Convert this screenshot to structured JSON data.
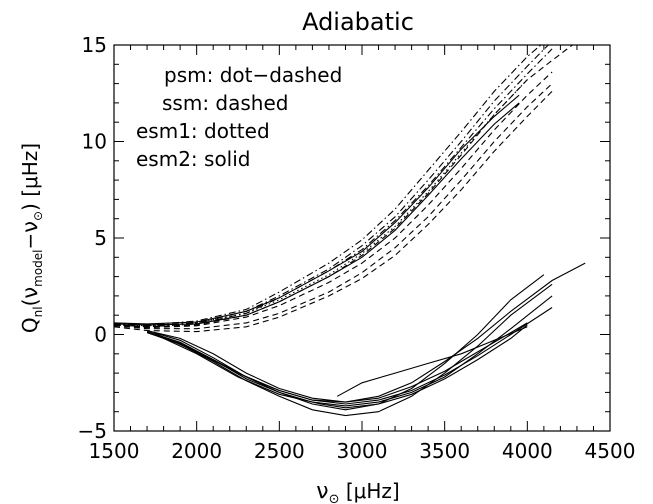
{
  "chart_data": {
    "type": "line",
    "title": "Adiabatic",
    "xlabel_parts": [
      "ν",
      "⊙",
      " [",
      "μ",
      "Hz]"
    ],
    "ylabel_parts": [
      "Q",
      "nl",
      "(",
      "ν",
      "model",
      "−",
      "ν",
      "⊙",
      ")  [",
      "μ",
      "Hz]"
    ],
    "xlim": [
      1500,
      4500
    ],
    "ylim": [
      -5,
      15
    ],
    "xticks": [
      1500,
      2000,
      2500,
      3000,
      3500,
      4000,
      4500
    ],
    "yticks": [
      -5,
      0,
      5,
      10,
      15
    ],
    "legend": [
      {
        "text": "psm: dot−dashed",
        "style": "dashdot"
      },
      {
        "text": "ssm: dashed",
        "style": "dashed"
      },
      {
        "text": "esm1: dotted",
        "style": "dotted"
      },
      {
        "text": "esm2: solid",
        "style": "solid"
      }
    ],
    "series": [
      {
        "style": "dashdot",
        "x": [
          1500,
          1700,
          2000,
          2300,
          2500,
          2800,
          3000,
          3200,
          3400,
          3600,
          3800,
          4000,
          4150
        ],
        "y": [
          0.6,
          0.5,
          0.7,
          1.3,
          2.2,
          3.7,
          4.9,
          6.5,
          8.5,
          10.5,
          12.6,
          14.4,
          15.5
        ]
      },
      {
        "style": "dashdot",
        "x": [
          1500,
          1700,
          2000,
          2300,
          2500,
          2800,
          3000,
          3200,
          3400,
          3600,
          3800,
          4000,
          4150
        ],
        "y": [
          0.55,
          0.45,
          0.6,
          1.2,
          2.0,
          3.4,
          4.6,
          6.1,
          8.0,
          10.0,
          12.1,
          13.9,
          15.2
        ]
      },
      {
        "style": "dashdot",
        "x": [
          1500,
          1700,
          2000,
          2300,
          2500,
          2800,
          3000,
          3200,
          3400,
          3600,
          3800,
          4000,
          4150
        ],
        "y": [
          0.5,
          0.4,
          0.55,
          1.1,
          1.9,
          3.3,
          4.4,
          5.9,
          7.7,
          9.7,
          11.7,
          13.5,
          14.8
        ]
      },
      {
        "style": "dashed",
        "x": [
          1500,
          1700,
          2000,
          2300,
          2500,
          2800,
          3000,
          3200,
          3400,
          3600,
          3800,
          4000,
          4150,
          4350
        ],
        "y": [
          0.5,
          0.4,
          0.5,
          1.0,
          1.7,
          3.0,
          4.1,
          5.5,
          7.3,
          9.3,
          11.4,
          13.2,
          14.2,
          15.5
        ]
      },
      {
        "style": "dashed",
        "x": [
          1500,
          1700,
          2000,
          2300,
          2500,
          2800,
          3000,
          3200,
          3400,
          3600,
          3800,
          4000,
          4150
        ],
        "y": [
          0.5,
          0.35,
          0.45,
          0.9,
          1.5,
          2.7,
          3.7,
          5.0,
          6.7,
          8.6,
          10.6,
          12.4,
          13.6
        ]
      },
      {
        "style": "dashed",
        "x": [
          1500,
          1700,
          2000,
          2300,
          2500,
          2800,
          3000,
          3200,
          3400,
          3600,
          3800,
          4000,
          4150
        ],
        "y": [
          0.45,
          0.3,
          0.3,
          0.6,
          1.1,
          2.2,
          3.2,
          4.5,
          6.1,
          8.0,
          10.0,
          11.8,
          13.0
        ]
      },
      {
        "style": "dashed",
        "x": [
          1500,
          1700,
          2000,
          2300,
          2500,
          2800,
          3000,
          3200,
          3400,
          3600,
          3800,
          4000,
          4150
        ],
        "y": [
          0.4,
          0.2,
          0.15,
          0.4,
          0.9,
          2.0,
          2.9,
          4.1,
          5.7,
          7.5,
          9.5,
          11.3,
          12.6
        ]
      },
      {
        "style": "dotted",
        "x": [
          1500,
          1700,
          2000,
          2300,
          2500,
          2800,
          3000,
          3200,
          3400,
          3600,
          3800,
          4000
        ],
        "y": [
          0.5,
          0.45,
          0.6,
          1.1,
          1.8,
          3.1,
          4.2,
          5.6,
          7.4,
          9.4,
          11.4,
          13.2
        ]
      },
      {
        "style": "solid",
        "x": [
          1500,
          1700,
          2000,
          2300,
          2500,
          2800,
          3000,
          3200,
          3400,
          3600,
          3800,
          3950
        ],
        "y": [
          0.6,
          0.55,
          0.65,
          1.2,
          1.9,
          3.3,
          4.3,
          5.8,
          7.6,
          9.6,
          11.3,
          12.4
        ]
      },
      {
        "style": "solid",
        "x": [
          1500,
          1700,
          2000,
          2300,
          2500,
          2800,
          3000,
          3200,
          3400,
          3600,
          3800,
          3950
        ],
        "y": [
          0.55,
          0.5,
          0.55,
          1.0,
          1.7,
          3.0,
          4.0,
          5.4,
          7.2,
          9.1,
          10.9,
          12.0
        ]
      },
      {
        "style": "solid",
        "x": [
          1700,
          1900,
          2100,
          2300,
          2500,
          2700,
          2900,
          3100,
          3300,
          3500,
          3700,
          3900,
          4100
        ],
        "y": [
          0.2,
          -0.3,
          -1.2,
          -2.2,
          -3.0,
          -3.6,
          -3.9,
          -3.6,
          -2.8,
          -1.5,
          0.0,
          1.8,
          3.1
        ]
      },
      {
        "style": "solid",
        "x": [
          1700,
          1900,
          2100,
          2300,
          2500,
          2700,
          2900,
          3100,
          3300,
          3500,
          3700,
          3900,
          4150
        ],
        "y": [
          0.1,
          -0.5,
          -1.4,
          -2.4,
          -3.2,
          -3.9,
          -4.2,
          -4.0,
          -3.2,
          -2.0,
          -0.6,
          1.0,
          2.6
        ]
      },
      {
        "style": "solid",
        "x": [
          1700,
          1900,
          2100,
          2300,
          2500,
          2700,
          2900,
          3100,
          3300,
          3500,
          3700,
          3900,
          4150
        ],
        "y": [
          0.15,
          -0.4,
          -1.3,
          -2.3,
          -3.0,
          -3.5,
          -3.7,
          -3.5,
          -3.0,
          -2.2,
          -1.0,
          0.3,
          2.0
        ]
      },
      {
        "style": "solid",
        "x": [
          1700,
          1900,
          2100,
          2300,
          2500,
          2700,
          2900,
          3100,
          3300,
          3500,
          3700,
          3900,
          4150
        ],
        "y": [
          0.1,
          -0.45,
          -1.3,
          -2.2,
          -2.9,
          -3.4,
          -3.6,
          -3.4,
          -2.9,
          -2.1,
          -1.1,
          0.0,
          1.4
        ]
      },
      {
        "style": "solid",
        "x": [
          1700,
          1900,
          2100,
          2300,
          2500,
          2700,
          2900,
          3100,
          3300,
          3500,
          3700,
          3900,
          4000
        ],
        "y": [
          0.2,
          -0.2,
          -1.0,
          -2.0,
          -2.8,
          -3.3,
          -3.5,
          -3.3,
          -2.7,
          -1.9,
          -0.9,
          0.1,
          0.6
        ]
      },
      {
        "style": "solid",
        "x": [
          1750,
          2000,
          2250,
          2500,
          2750,
          2900,
          3100,
          3300,
          3500,
          3700,
          3900,
          4000
        ],
        "y": [
          0.0,
          -1.0,
          -2.2,
          -3.1,
          -3.6,
          -3.8,
          -3.6,
          -3.1,
          -2.3,
          -1.3,
          -0.2,
          0.5
        ]
      },
      {
        "style": "solid",
        "x": [
          1750,
          2000,
          2250,
          2500,
          2700,
          2900,
          3100,
          3300,
          3500,
          3700,
          3900,
          4150,
          4350
        ],
        "y": [
          0.05,
          -0.9,
          -2.0,
          -2.9,
          -3.4,
          -3.5,
          -3.2,
          -2.5,
          -1.4,
          -0.2,
          1.2,
          2.8,
          3.7
        ]
      },
      {
        "style": "solid",
        "x": [
          2850,
          3000,
          3200,
          3400,
          3600,
          3800,
          4000
        ],
        "y": [
          -3.2,
          -2.5,
          -2.0,
          -1.5,
          -1.0,
          -0.3,
          0.4
        ]
      }
    ]
  }
}
